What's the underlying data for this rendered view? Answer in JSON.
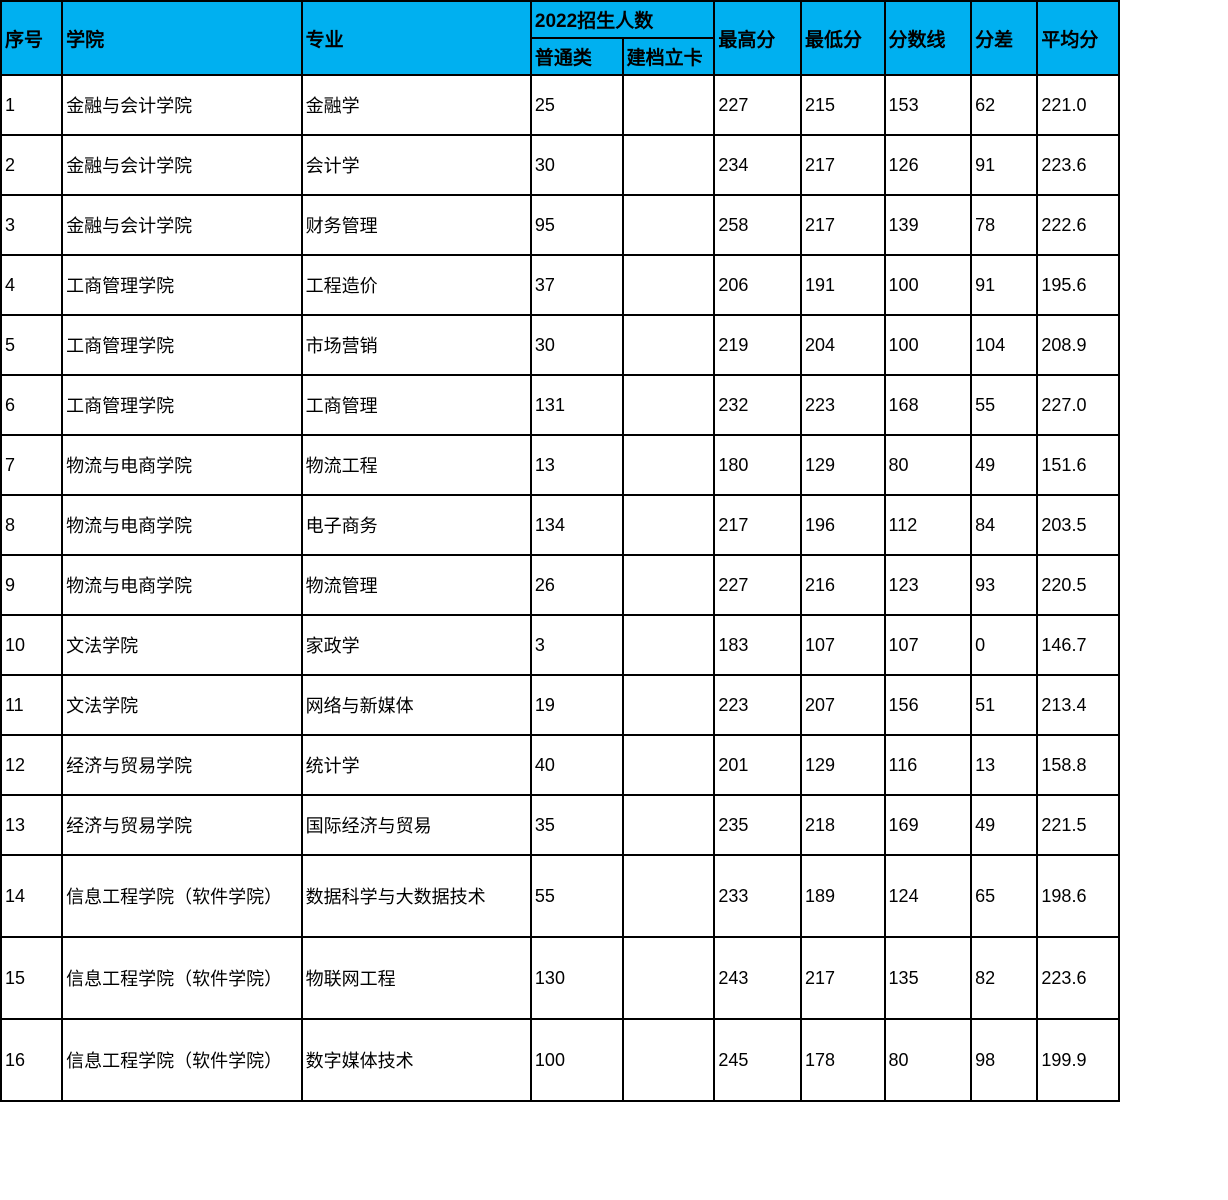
{
  "table": {
    "header_bg": "#00b0f0",
    "border_color": "#000000",
    "columns": {
      "seq": "序号",
      "college": "学院",
      "major": "专业",
      "enrollment_group": "2022招生人数",
      "general": "普通类",
      "card": "建档立卡",
      "max_score": "最高分",
      "min_score": "最低分",
      "score_line": "分数线",
      "diff": "分差",
      "avg_score": "平均分"
    },
    "rows": [
      {
        "seq": "1",
        "college": "金融与会计学院",
        "major": "金融学",
        "general": "25",
        "card": "",
        "max": "227",
        "min": "215",
        "line": "153",
        "diff": "62",
        "avg": "221.0"
      },
      {
        "seq": "2",
        "college": "金融与会计学院",
        "major": "会计学",
        "general": "30",
        "card": "",
        "max": "234",
        "min": "217",
        "line": "126",
        "diff": "91",
        "avg": "223.6"
      },
      {
        "seq": "3",
        "college": "金融与会计学院",
        "major": "财务管理",
        "general": "95",
        "card": "",
        "max": "258",
        "min": "217",
        "line": "139",
        "diff": "78",
        "avg": "222.6"
      },
      {
        "seq": "4",
        "college": "工商管理学院",
        "major": "工程造价",
        "general": "37",
        "card": "",
        "max": "206",
        "min": "191",
        "line": "100",
        "diff": "91",
        "avg": "195.6"
      },
      {
        "seq": "5",
        "college": "工商管理学院",
        "major": "市场营销",
        "general": "30",
        "card": "",
        "max": "219",
        "min": "204",
        "line": "100",
        "diff": "104",
        "avg": "208.9"
      },
      {
        "seq": "6",
        "college": "工商管理学院",
        "major": "工商管理",
        "general": "131",
        "card": "",
        "max": "232",
        "min": "223",
        "line": "168",
        "diff": "55",
        "avg": "227.0"
      },
      {
        "seq": "7",
        "college": "物流与电商学院",
        "major": "物流工程",
        "general": "13",
        "card": "",
        "max": "180",
        "min": "129",
        "line": "80",
        "diff": "49",
        "avg": "151.6"
      },
      {
        "seq": "8",
        "college": "物流与电商学院",
        "major": "电子商务",
        "general": "134",
        "card": "",
        "max": "217",
        "min": "196",
        "line": "112",
        "diff": "84",
        "avg": "203.5"
      },
      {
        "seq": "9",
        "college": "物流与电商学院",
        "major": "物流管理",
        "general": "26",
        "card": "",
        "max": "227",
        "min": "216",
        "line": "123",
        "diff": "93",
        "avg": "220.5"
      },
      {
        "seq": "10",
        "college": "文法学院",
        "major": "家政学",
        "general": "3",
        "card": "",
        "max": "183",
        "min": "107",
        "line": "107",
        "diff": "0",
        "avg": "146.7"
      },
      {
        "seq": "11",
        "college": "文法学院",
        "major": "网络与新媒体",
        "general": "19",
        "card": "",
        "max": "223",
        "min": "207",
        "line": "156",
        "diff": "51",
        "avg": "213.4"
      },
      {
        "seq": "12",
        "college": "经济与贸易学院",
        "major": "统计学",
        "general": "40",
        "card": "",
        "max": "201",
        "min": "129",
        "line": "116",
        "diff": "13",
        "avg": "158.8"
      },
      {
        "seq": "13",
        "college": "经济与贸易学院",
        "major": "国际经济与贸易",
        "general": "35",
        "card": "",
        "max": "235",
        "min": "218",
        "line": "169",
        "diff": "49",
        "avg": "221.5"
      },
      {
        "seq": "14",
        "college": "信息工程学院（软件学院）",
        "major": "数据科学与大数据技术",
        "general": "55",
        "card": "",
        "max": "233",
        "min": "189",
        "line": "124",
        "diff": "65",
        "avg": "198.6",
        "tall": true
      },
      {
        "seq": "15",
        "college": "信息工程学院（软件学院）",
        "major": "物联网工程",
        "general": "130",
        "card": "",
        "max": "243",
        "min": "217",
        "line": "135",
        "diff": "82",
        "avg": "223.6",
        "tall": true
      },
      {
        "seq": "16",
        "college": "信息工程学院（软件学院）",
        "major": "数字媒体技术",
        "general": "100",
        "card": "",
        "max": "245",
        "min": "178",
        "line": "80",
        "diff": "98",
        "avg": "199.9",
        "tall": true
      }
    ]
  }
}
